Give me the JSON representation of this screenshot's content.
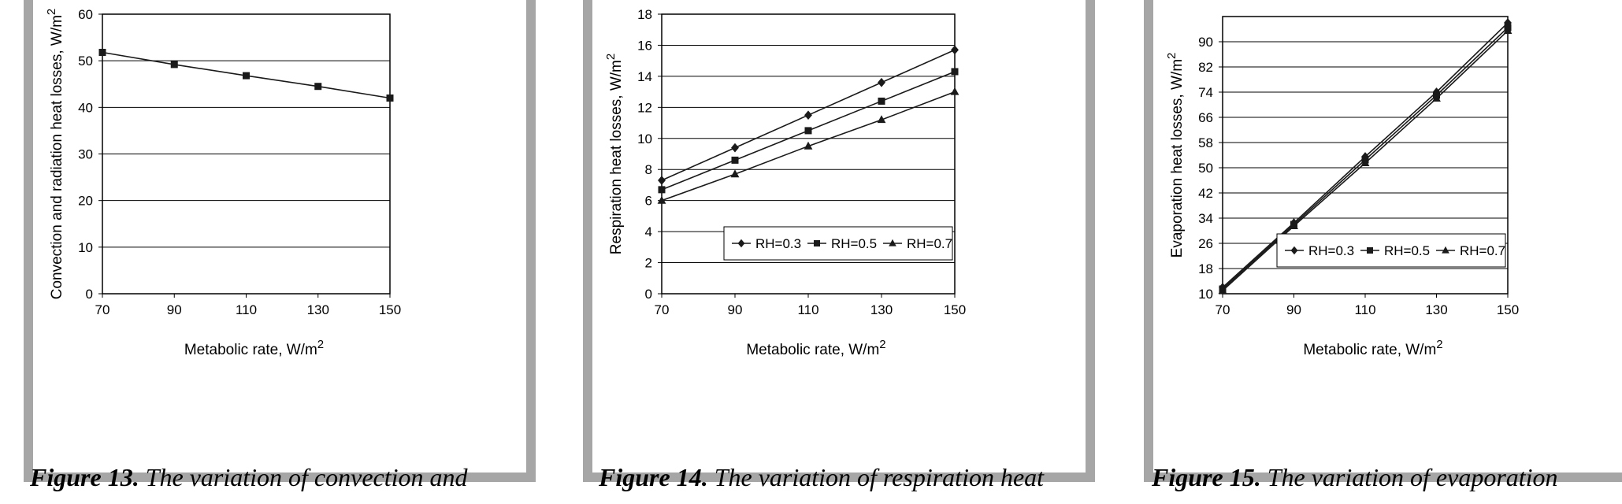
{
  "charts": [
    {
      "type": "line",
      "xlabel": "Metabolic rate, W/m",
      "xlabel_sup": "2",
      "ylabel": "Convection and radiation heat losses, W/m",
      "ylabel_sup": "2",
      "xticks": [
        70,
        90,
        110,
        130,
        150
      ],
      "yticks": [
        0,
        10,
        20,
        30,
        40,
        50,
        60
      ],
      "xlim": [
        70,
        150
      ],
      "ylim": [
        0,
        60
      ],
      "grid": true,
      "series": [
        {
          "marker": "square",
          "x": [
            70,
            90,
            110,
            130,
            150
          ],
          "y": [
            51.8,
            49.2,
            46.8,
            44.5,
            42.0
          ]
        }
      ]
    },
    {
      "type": "line",
      "xlabel": "Metabolic rate, W/m",
      "xlabel_sup": "2",
      "ylabel": "Respiration heat losses, W/m",
      "ylabel_sup": "2",
      "xticks": [
        70,
        90,
        110,
        130,
        150
      ],
      "yticks": [
        0,
        2,
        4,
        6,
        8,
        10,
        12,
        14,
        16,
        18
      ],
      "xlim": [
        70,
        150
      ],
      "ylim": [
        0,
        18
      ],
      "grid": true,
      "legend": "bottom-right",
      "series": [
        {
          "name": "RH=0.3",
          "marker": "diamond",
          "x": [
            70,
            90,
            110,
            130,
            150
          ],
          "y": [
            7.3,
            9.4,
            11.5,
            13.6,
            15.7
          ]
        },
        {
          "name": "RH=0.5",
          "marker": "square",
          "x": [
            70,
            90,
            110,
            130,
            150
          ],
          "y": [
            6.7,
            8.6,
            10.5,
            12.4,
            14.3
          ]
        },
        {
          "name": "RH=0.7",
          "marker": "triangle",
          "x": [
            70,
            90,
            110,
            130,
            150
          ],
          "y": [
            6.0,
            7.7,
            9.5,
            11.2,
            13.0
          ]
        }
      ]
    },
    {
      "type": "line",
      "xlabel": "Metabolic rate, W/m",
      "xlabel_sup": "2",
      "ylabel": "Evaporation heat losses, W/m",
      "ylabel_sup": "2",
      "xticks": [
        70,
        90,
        110,
        130,
        150
      ],
      "yticks": [
        10,
        18,
        26,
        34,
        42,
        50,
        58,
        66,
        74,
        82,
        90
      ],
      "xlim": [
        70,
        150
      ],
      "ylim": [
        10,
        98
      ],
      "grid": true,
      "legend": "bottom-right",
      "series": [
        {
          "name": "RH=0.3",
          "marker": "diamond",
          "x": [
            70,
            90,
            110,
            130,
            150
          ],
          "y": [
            12.0,
            32.5,
            53.5,
            74.0,
            96.0
          ]
        },
        {
          "name": "RH=0.5",
          "marker": "square",
          "x": [
            70,
            90,
            110,
            130,
            150
          ],
          "y": [
            11.5,
            32.0,
            52.5,
            73.0,
            94.5
          ]
        },
        {
          "name": "RH=0.7",
          "marker": "triangle",
          "x": [
            70,
            90,
            110,
            130,
            150
          ],
          "y": [
            11.0,
            31.5,
            51.5,
            72.0,
            93.5
          ]
        }
      ]
    }
  ],
  "captions": [
    {
      "label": "Figure 13.",
      "text": " The variation of convection and"
    },
    {
      "label": "Figure 14.",
      "text": " The variation of respiration heat"
    },
    {
      "label": "Figure 15.",
      "text": " The variation of evaporation"
    }
  ]
}
